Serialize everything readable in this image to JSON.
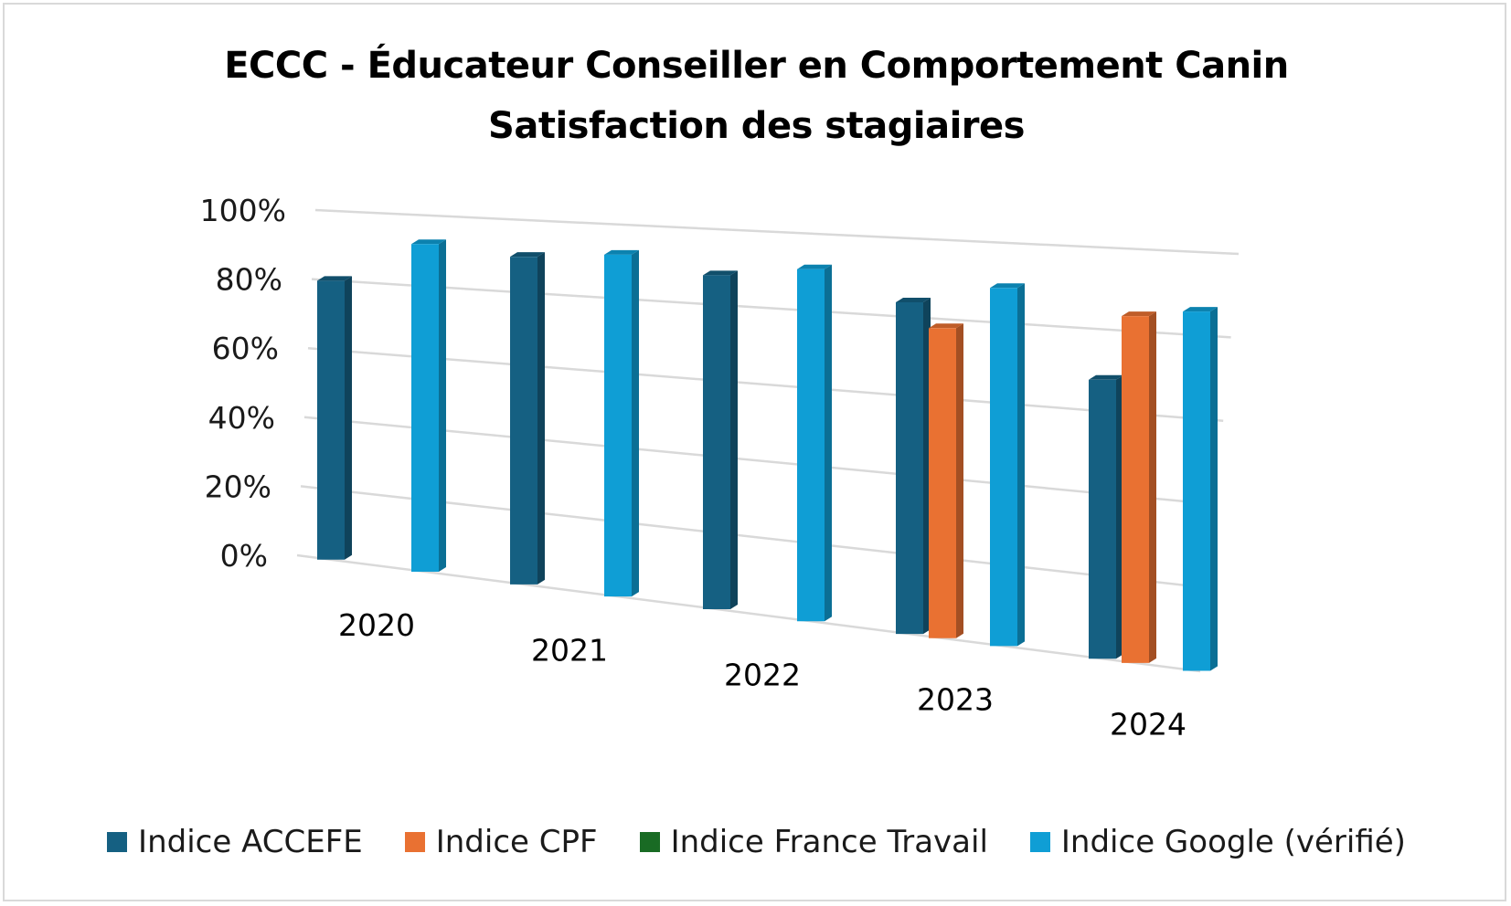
{
  "chart_data": {
    "type": "bar",
    "title": "ECCC - Éducateur Conseiller en Comportement Canin",
    "subtitle": "Satisfaction des stagiaires",
    "categories": [
      "2020",
      "2021",
      "2022",
      "2023",
      "2024"
    ],
    "series": [
      {
        "name": "Indice ACCEFE",
        "color": "#156082",
        "values": [
          80,
          90,
          88,
          84,
          68
        ]
      },
      {
        "name": "Indice CPF",
        "color": "#E97132",
        "values": [
          null,
          null,
          null,
          78,
          84
        ]
      },
      {
        "name": "Indice France Travail",
        "color": "#196B24",
        "values": [
          null,
          null,
          null,
          null,
          null
        ]
      },
      {
        "name": "Indice Google (vérifié)",
        "color": "#0F9ED5",
        "values": [
          92,
          92,
          91,
          89,
          86
        ]
      }
    ],
    "yticks": [
      "0%",
      "20%",
      "40%",
      "60%",
      "80%",
      "100%"
    ],
    "ylim": [
      0,
      100
    ],
    "xlabel": "",
    "ylabel": "",
    "legend_position": "bottom",
    "grid": true
  }
}
